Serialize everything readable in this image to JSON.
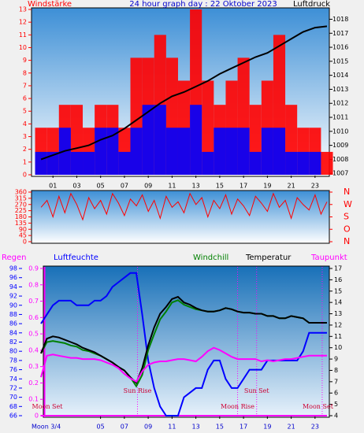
{
  "chart_data": [
    {
      "type": "bar",
      "title": "24 hour graph day : 22 Oktober 2023",
      "x": [
        0,
        1,
        2,
        3,
        4,
        5,
        6,
        7,
        8,
        9,
        10,
        11,
        12,
        13,
        14,
        15,
        16,
        17,
        18,
        19,
        20,
        21,
        22,
        23,
        24
      ],
      "xlim": [
        -0.8,
        24.2
      ],
      "xticks": [
        {
          "value": 1,
          "label": "01"
        },
        {
          "value": 3,
          "label": "03"
        },
        {
          "value": 5,
          "label": "05"
        },
        {
          "value": 7,
          "label": "07"
        },
        {
          "value": 9,
          "label": "09"
        },
        11,
        13,
        15,
        17,
        19,
        21,
        23
      ],
      "ylim": [
        0,
        13
      ],
      "yticks": [
        0,
        1,
        2,
        3,
        4,
        5,
        6,
        7,
        8,
        9,
        10,
        11,
        12,
        13
      ],
      "y2lim": [
        1006.9,
        1018.7
      ],
      "y2ticks": [
        1007,
        1008,
        1009,
        1010,
        1011,
        1012,
        1013,
        1014,
        1015,
        1016,
        1017,
        1018
      ],
      "series": [
        {
          "name": "Windstärke",
          "color": "#ff0000",
          "values": [
            3.7,
            3.7,
            5.5,
            5.5,
            3.7,
            5.5,
            5.5,
            3.7,
            9.2,
            9.2,
            11,
            9.2,
            7.4,
            13,
            7.4,
            5.5,
            7.4,
            9.2,
            5.5,
            7.4,
            11,
            5.5,
            3.7,
            3.7,
            1.8
          ]
        },
        {
          "color": "#0000ff",
          "values": [
            1.8,
            1.8,
            3.7,
            1.8,
            1.8,
            3.7,
            3.7,
            1.8,
            3.7,
            5.5,
            5.5,
            3.7,
            3.7,
            5.5,
            1.8,
            3.7,
            3.7,
            3.7,
            1.8,
            3.7,
            3.7,
            1.8,
            1.8,
            1.8,
            0
          ]
        },
        {
          "name": "Luftdruck",
          "color": "#000000",
          "axis": "y2",
          "values": [
            1008,
            1008.3,
            1008.6,
            1008.8,
            1009,
            1009.4,
            1009.7,
            1010.2,
            1010.8,
            1011.4,
            1012,
            1012.5,
            1012.8,
            1013.2,
            1013.6,
            1014.1,
            1014.5,
            1014.9,
            1015.3,
            1015.6,
            1016.1,
            1016.6,
            1017.1,
            1017.4,
            1017.5
          ]
        }
      ]
    },
    {
      "type": "line",
      "x": [
        0,
        0.5,
        1,
        1.5,
        2,
        2.5,
        3,
        3.5,
        4,
        4.5,
        5,
        5.5,
        6,
        6.5,
        7,
        7.5,
        8,
        8.5,
        9,
        9.5,
        10,
        10.5,
        11,
        11.5,
        12,
        12.5,
        13,
        13.5,
        14,
        14.5,
        15,
        15.5,
        16,
        16.5,
        17,
        17.5,
        18,
        18.5,
        19,
        19.5,
        20,
        20.5,
        21,
        21.5,
        22,
        22.5,
        23,
        23.5,
        24
      ],
      "xlim": [
        -0.8,
        24.2
      ],
      "ylim": [
        0,
        360
      ],
      "yticks": [
        0,
        45,
        90,
        135,
        180,
        225,
        270,
        315,
        360
      ],
      "y2lim": [
        0,
        360
      ],
      "y2ticks": [
        {
          "value": 360,
          "label": "N"
        },
        {
          "value": 270,
          "label": "W"
        },
        {
          "value": 180,
          "label": "S"
        },
        {
          "value": 90,
          "label": "O"
        },
        {
          "value": 0,
          "label": "N"
        }
      ],
      "series": [
        {
          "color": "#ff0000",
          "values": [
            250,
            300,
            180,
            330,
            210,
            350,
            270,
            160,
            320,
            240,
            300,
            200,
            350,
            280,
            190,
            310,
            260,
            340,
            220,
            300,
            170,
            330,
            250,
            290,
            210,
            350,
            270,
            320,
            180,
            300,
            240,
            340,
            200,
            310,
            260,
            190,
            330,
            280,
            220,
            350,
            250,
            300,
            170,
            320,
            270,
            230,
            340,
            200,
            290
          ]
        }
      ]
    },
    {
      "type": "line",
      "x": [
        0,
        0.5,
        1,
        1.5,
        2,
        2.5,
        3,
        3.5,
        4,
        4.5,
        5,
        5.5,
        6,
        6.5,
        7,
        7.5,
        8,
        8.5,
        9,
        9.5,
        10,
        10.5,
        11,
        11.5,
        12,
        12.5,
        13,
        13.5,
        14,
        14.5,
        15,
        15.5,
        16,
        16.5,
        17,
        17.5,
        18,
        18.5,
        19,
        19.5,
        20,
        20.5,
        21,
        21.5,
        22,
        22.5,
        23,
        23.5,
        24
      ],
      "xlim": [
        0.2,
        24.2
      ],
      "xticks": [
        {
          "value": 5,
          "label": "05"
        },
        {
          "value": 7,
          "label": "07"
        },
        {
          "value": 9,
          "label": "09"
        },
        11,
        13,
        15,
        17,
        19,
        21,
        23
      ],
      "ylim": [
        66,
        98
      ],
      "yticks": [
        66,
        68,
        70,
        72,
        74,
        76,
        78,
        80,
        82,
        84,
        86,
        88,
        90,
        92,
        94,
        96,
        98
      ],
      "y2lim": [
        4,
        17
      ],
      "y2ticks": [
        4,
        5,
        6,
        7,
        8,
        9,
        10,
        11,
        12,
        13,
        14,
        15,
        16,
        17
      ],
      "y3lim": [
        0,
        0.9
      ],
      "y3ticks": [
        0,
        0.1,
        0.2,
        0.3,
        0.4,
        0.5,
        0.6,
        0.7,
        0.8,
        0.9
      ],
      "series": [
        {
          "name": "Regen",
          "color": "#ff00ff",
          "axis": "y3",
          "values": [
            0,
            0,
            0,
            0,
            0,
            0,
            0,
            0,
            0,
            0,
            0,
            0,
            0,
            0,
            0,
            0,
            0,
            0,
            0,
            0,
            0,
            0,
            0,
            0,
            0,
            0,
            0,
            0,
            0,
            0,
            0,
            0,
            0,
            0,
            0,
            0,
            0,
            0,
            0,
            0,
            0,
            0,
            0,
            0,
            0,
            0,
            0,
            0,
            0
          ]
        },
        {
          "name": "Luftfeuchte",
          "color": "#0000ff",
          "values": [
            86,
            88,
            90,
            91,
            91,
            91,
            90,
            90,
            90,
            91,
            91,
            92,
            94,
            95,
            96,
            97,
            97,
            88,
            78,
            72,
            68,
            66,
            66,
            66,
            70,
            71,
            72,
            72,
            76,
            78,
            78,
            74,
            72,
            72,
            74,
            76,
            76,
            76,
            78,
            78,
            78,
            78,
            78,
            78,
            80,
            84,
            84,
            84,
            84
          ]
        },
        {
          "name": "Windchill",
          "color": "#008000",
          "axis": "y2",
          "values": [
            9.5,
            10.5,
            10.6,
            10.5,
            10.4,
            10.2,
            10.1,
            9.8,
            9.7,
            9.5,
            9.3,
            9,
            8.7,
            8.3,
            8,
            7.4,
            6.6,
            7.6,
            9.8,
            11.2,
            12.5,
            13.2,
            14,
            14.2,
            13.8,
            13.6,
            13.4,
            13.3,
            13.2,
            13.2,
            13.3,
            13.5,
            13.4,
            13.2,
            13.1,
            13.1,
            13,
            13,
            12.8,
            12.8,
            12.6,
            12.6,
            12.8,
            12.7,
            12.6,
            12.2,
            12.2,
            12.2,
            12.2
          ]
        },
        {
          "name": "Temperatur",
          "color": "#000000",
          "axis": "y2",
          "values": [
            9.5,
            10.8,
            11,
            10.9,
            10.7,
            10.5,
            10.3,
            10,
            9.8,
            9.6,
            9.3,
            9,
            8.7,
            8.3,
            8,
            7.4,
            6.9,
            8.2,
            10.2,
            11.8,
            13,
            13.6,
            14.3,
            14.5,
            14,
            13.8,
            13.5,
            13.3,
            13.2,
            13.2,
            13.3,
            13.5,
            13.4,
            13.2,
            13.1,
            13.1,
            13,
            13,
            12.8,
            12.8,
            12.6,
            12.6,
            12.8,
            12.7,
            12.6,
            12.2,
            12.2,
            12.2,
            12.2
          ]
        },
        {
          "name": "Taupunkt",
          "color": "#ff00ff",
          "axis": "y2",
          "values": [
            7.4,
            9.3,
            9.4,
            9.3,
            9.2,
            9.1,
            9.1,
            9,
            9,
            9,
            8.9,
            8.7,
            8.5,
            8.2,
            7.7,
            7.3,
            7,
            7.9,
            8.5,
            8.7,
            8.8,
            8.8,
            8.9,
            9,
            9,
            8.9,
            8.8,
            9.2,
            9.7,
            10,
            9.8,
            9.5,
            9.2,
            9,
            9,
            9,
            9,
            8.8,
            8.9,
            8.8,
            8.9,
            9,
            9,
            9.1,
            9.2,
            9.3,
            9.3,
            9.3,
            9.3
          ]
        }
      ],
      "annotations": [
        {
          "text": "Sun Rise",
          "x": 8.1
        },
        {
          "text": "Sun Set",
          "x": 18.1
        },
        {
          "text": "Moon Rise",
          "x": 16.5
        },
        {
          "text": "Moon Set",
          "x": 0.3
        },
        {
          "text": "Moon Set",
          "x": 23.6
        }
      ],
      "moon_phase": "Moon 3/4"
    }
  ]
}
